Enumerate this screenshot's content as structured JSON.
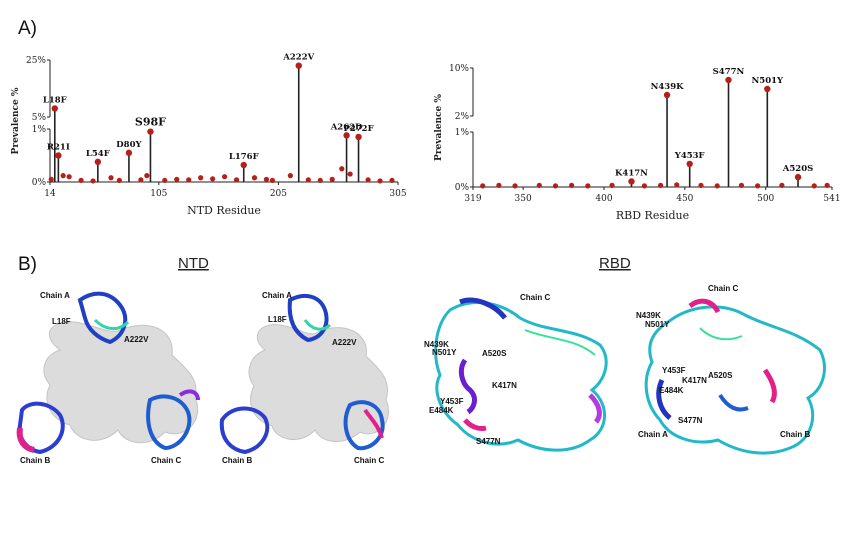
{
  "panels": {
    "a": "A)",
    "b": "B)"
  },
  "structure_titles": {
    "ntd": "NTD",
    "rbd": "RBD"
  },
  "chart_data": [
    {
      "type": "scatter",
      "style": "lollipop",
      "xlabel": "NTD Residue",
      "ylabel": "Prevalence %",
      "xticks": [
        "14",
        "105",
        "205",
        "305"
      ],
      "xlim": [
        14,
        305
      ],
      "axis_break": true,
      "lower_yticks": [
        "0%",
        "1%"
      ],
      "upper_yticks": [
        "5%",
        "25%"
      ],
      "highlighted": [
        {
          "label": "L18F",
          "x": 18,
          "y": 8
        },
        {
          "label": "R21I",
          "x": 21,
          "y": 0.5
        },
        {
          "label": "L54F",
          "x": 54,
          "y": 0.38
        },
        {
          "label": "D80Y",
          "x": 80,
          "y": 0.55
        },
        {
          "label": "S98F",
          "x": 98,
          "y": 0.95,
          "emphasis": true
        },
        {
          "label": "L176F",
          "x": 176,
          "y": 0.32
        },
        {
          "label": "A222V",
          "x": 222,
          "y": 23
        },
        {
          "label": "A262D",
          "x": 262,
          "y": 0.88
        },
        {
          "label": "P272F",
          "x": 272,
          "y": 0.85
        }
      ],
      "background_points": [
        {
          "x": 15,
          "y": 0.05
        },
        {
          "x": 25,
          "y": 0.12
        },
        {
          "x": 30,
          "y": 0.1
        },
        {
          "x": 40,
          "y": 0.03
        },
        {
          "x": 50,
          "y": 0.02
        },
        {
          "x": 65,
          "y": 0.08
        },
        {
          "x": 72,
          "y": 0.03
        },
        {
          "x": 90,
          "y": 0.04
        },
        {
          "x": 95,
          "y": 0.12
        },
        {
          "x": 110,
          "y": 0.03
        },
        {
          "x": 120,
          "y": 0.05
        },
        {
          "x": 130,
          "y": 0.04
        },
        {
          "x": 140,
          "y": 0.08
        },
        {
          "x": 150,
          "y": 0.06
        },
        {
          "x": 160,
          "y": 0.1
        },
        {
          "x": 170,
          "y": 0.04
        },
        {
          "x": 185,
          "y": 0.08
        },
        {
          "x": 195,
          "y": 0.05
        },
        {
          "x": 200,
          "y": 0.03
        },
        {
          "x": 215,
          "y": 0.12
        },
        {
          "x": 230,
          "y": 0.04
        },
        {
          "x": 240,
          "y": 0.03
        },
        {
          "x": 250,
          "y": 0.05
        },
        {
          "x": 258,
          "y": 0.25
        },
        {
          "x": 265,
          "y": 0.15
        },
        {
          "x": 280,
          "y": 0.04
        },
        {
          "x": 290,
          "y": 0.02
        },
        {
          "x": 300,
          "y": 0.03
        }
      ]
    },
    {
      "type": "scatter",
      "style": "lollipop",
      "xlabel": "RBD Residue",
      "ylabel": "Prevalence %",
      "xticks": [
        "319",
        "350",
        "400",
        "450",
        "500",
        "541"
      ],
      "xlim": [
        319,
        541
      ],
      "axis_break": true,
      "lower_yticks": [
        "0%",
        "1%"
      ],
      "upper_yticks": [
        "2%",
        "10%"
      ],
      "highlighted": [
        {
          "label": "N439K",
          "x": 439,
          "y": 5.5
        },
        {
          "label": "S477N",
          "x": 477,
          "y": 8
        },
        {
          "label": "N501Y",
          "x": 501,
          "y": 6.5
        },
        {
          "label": "K417N",
          "x": 417,
          "y": 0.1
        },
        {
          "label": "Y453F",
          "x": 453,
          "y": 0.42
        },
        {
          "label": "A520S",
          "x": 520,
          "y": 0.18
        }
      ],
      "background_points": [
        {
          "x": 325,
          "y": 0.02
        },
        {
          "x": 335,
          "y": 0.03
        },
        {
          "x": 345,
          "y": 0.02
        },
        {
          "x": 360,
          "y": 0.03
        },
        {
          "x": 370,
          "y": 0.02
        },
        {
          "x": 380,
          "y": 0.03
        },
        {
          "x": 390,
          "y": 0.02
        },
        {
          "x": 405,
          "y": 0.03
        },
        {
          "x": 425,
          "y": 0.02
        },
        {
          "x": 435,
          "y": 0.03
        },
        {
          "x": 445,
          "y": 0.04
        },
        {
          "x": 460,
          "y": 0.03
        },
        {
          "x": 470,
          "y": 0.02
        },
        {
          "x": 485,
          "y": 0.03
        },
        {
          "x": 495,
          "y": 0.02
        },
        {
          "x": 510,
          "y": 0.03
        },
        {
          "x": 530,
          "y": 0.02
        },
        {
          "x": 538,
          "y": 0.03
        }
      ]
    }
  ],
  "structures": [
    {
      "labels": [
        "Chain A",
        "L18F",
        "A222V",
        "Chain B",
        "Chain C"
      ]
    },
    {
      "labels": [
        "Chain A",
        "L18F",
        "A222V",
        "Chain B",
        "Chain C"
      ]
    },
    {
      "labels": [
        "Chain C",
        "N439K",
        "N501Y",
        "A520S",
        "K417N",
        "Y453F",
        "E484K",
        "S477N"
      ]
    },
    {
      "labels": [
        "Chain C",
        "N439K",
        "N501Y",
        "Y453F",
        "K417N",
        "A520S",
        "E484K",
        "S477N",
        "Chain A",
        "Chain B"
      ]
    }
  ],
  "colors": {
    "stem": "#222222",
    "point": "#b5211a",
    "surface": "#dcdcdc"
  }
}
